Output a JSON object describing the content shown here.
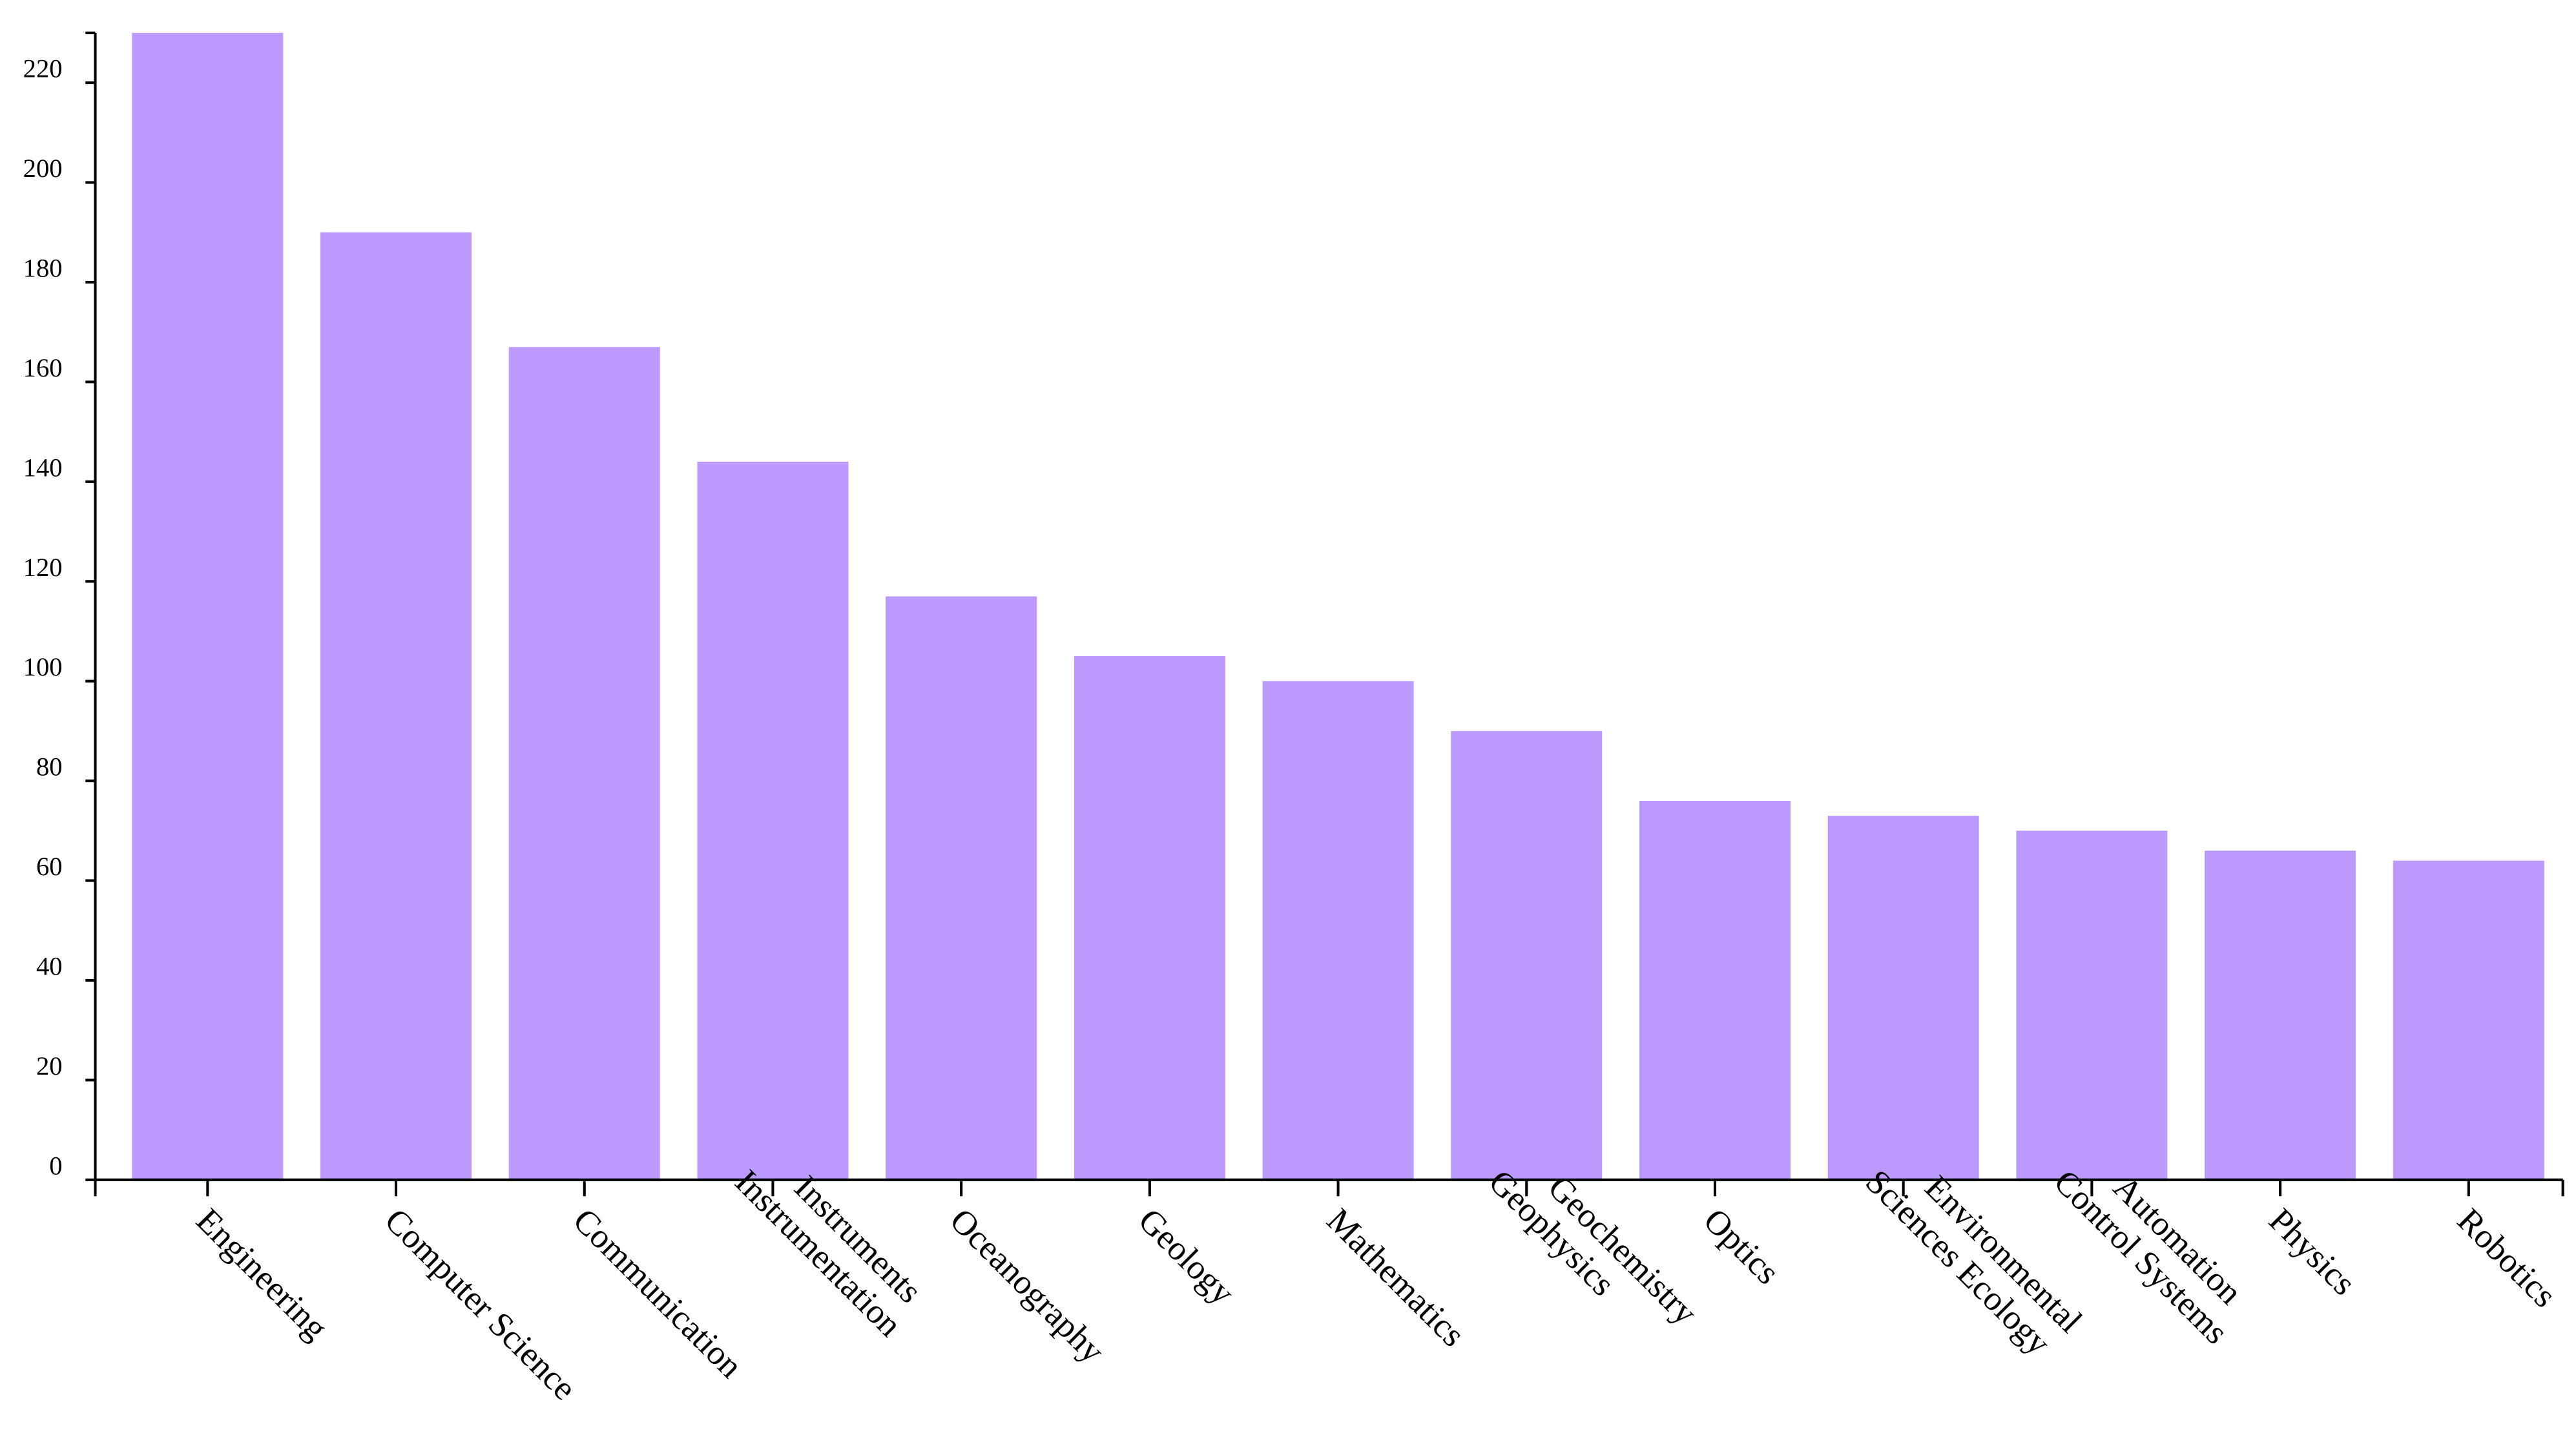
{
  "chart_data": {
    "type": "bar",
    "categories": [
      "Engineering",
      "Computer Science",
      "Communication",
      "Instruments Instrumentation",
      "Oceanography",
      "Geology",
      "Mathematics",
      "Geochemistry Geophysics",
      "Optics",
      "Environmental Sciences Ecology",
      "Automation Control Systems",
      "Physics",
      "Robotics"
    ],
    "values": [
      230,
      190,
      167,
      144,
      117,
      105,
      100,
      90,
      76,
      73,
      70,
      66,
      64
    ],
    "color": "#bb99fd",
    "ylim": [
      0,
      230
    ],
    "yticks": [
      0,
      20,
      40,
      60,
      80,
      100,
      120,
      140,
      160,
      180,
      200,
      220
    ],
    "grid": false
  }
}
